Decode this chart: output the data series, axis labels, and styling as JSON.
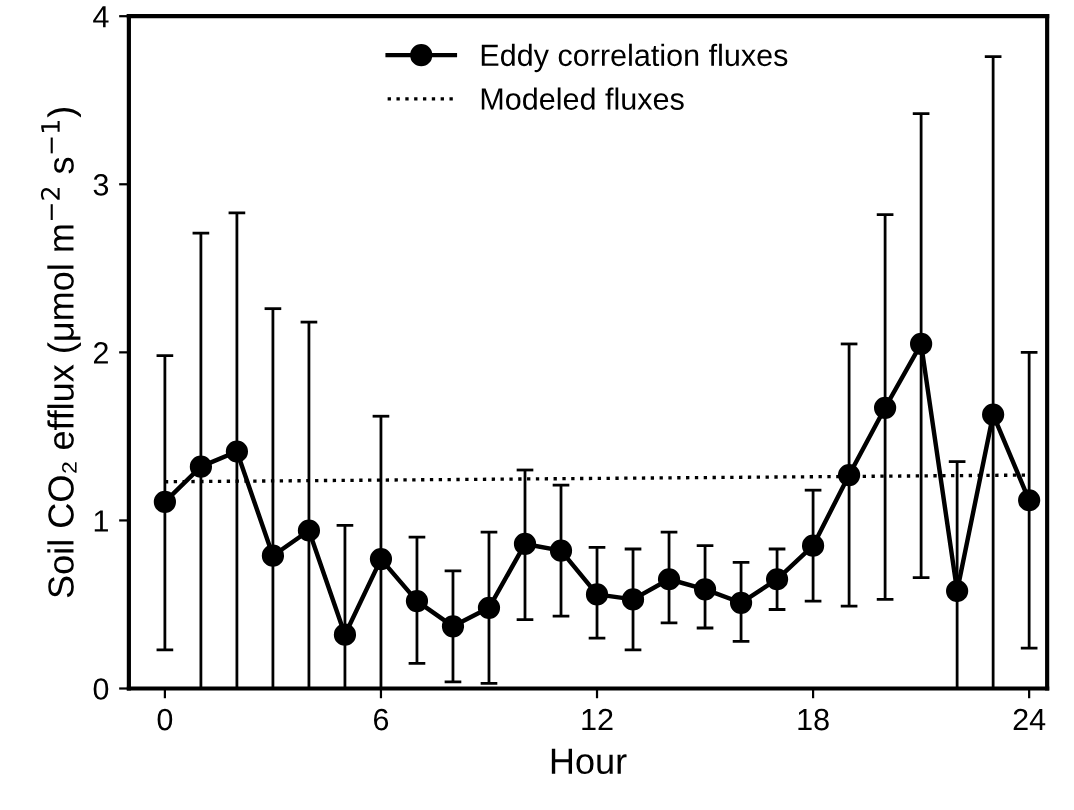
{
  "chart_data": {
    "type": "line",
    "xlabel": "Hour",
    "ylabel": "Soil CO₂ efflux (μmol m$^{−2}$ s$^{−1}$)",
    "xlim": [
      -1,
      24.5
    ],
    "ylim": [
      0,
      4
    ],
    "xticks": [
      0,
      6,
      12,
      18,
      24
    ],
    "yticks": [
      0,
      1,
      2,
      3,
      4
    ],
    "grid": false,
    "legend": "top",
    "series": [
      {
        "name": "Eddy correlation fluxes",
        "color": "#000000",
        "marker": "circle",
        "line_style": "solid",
        "x": [
          0,
          1,
          2,
          3,
          4,
          5,
          6,
          7,
          8,
          9,
          10,
          11,
          12,
          13,
          14,
          15,
          16,
          17,
          18,
          19,
          20,
          21,
          22,
          23,
          24
        ],
        "values": [
          1.11,
          1.32,
          1.41,
          0.79,
          0.94,
          0.32,
          0.77,
          0.52,
          0.37,
          0.48,
          0.86,
          0.82,
          0.56,
          0.53,
          0.65,
          0.59,
          0.51,
          0.65,
          0.85,
          1.27,
          1.67,
          2.05,
          0.58,
          1.63,
          1.12
        ],
        "errors": [
          [
            0.23,
            1.98
          ],
          [
            0,
            2.71
          ],
          [
            0,
            2.83
          ],
          [
            0,
            2.26
          ],
          [
            0,
            2.18
          ],
          [
            0,
            0.97
          ],
          [
            0,
            1.62
          ],
          [
            0.15,
            0.9
          ],
          [
            0.04,
            0.7
          ],
          [
            0.03,
            0.93
          ],
          [
            0.41,
            1.3
          ],
          [
            0.43,
            1.21
          ],
          [
            0.3,
            0.84
          ],
          [
            0.23,
            0.83
          ],
          [
            0.39,
            0.93
          ],
          [
            0.36,
            0.85
          ],
          [
            0.28,
            0.75
          ],
          [
            0.47,
            0.83
          ],
          [
            0.52,
            1.18
          ],
          [
            0.49,
            2.05
          ],
          [
            0.53,
            2.82
          ],
          [
            0.66,
            3.42
          ],
          [
            0,
            1.35
          ],
          [
            0,
            3.76
          ],
          [
            0.24,
            2.0
          ]
        ]
      },
      {
        "name": "Modeled fluxes",
        "color": "#000000",
        "marker": "none",
        "line_style": "dotted",
        "x": [
          0,
          6,
          12,
          18,
          24
        ],
        "values": [
          1.23,
          1.24,
          1.25,
          1.26,
          1.27
        ]
      }
    ]
  }
}
